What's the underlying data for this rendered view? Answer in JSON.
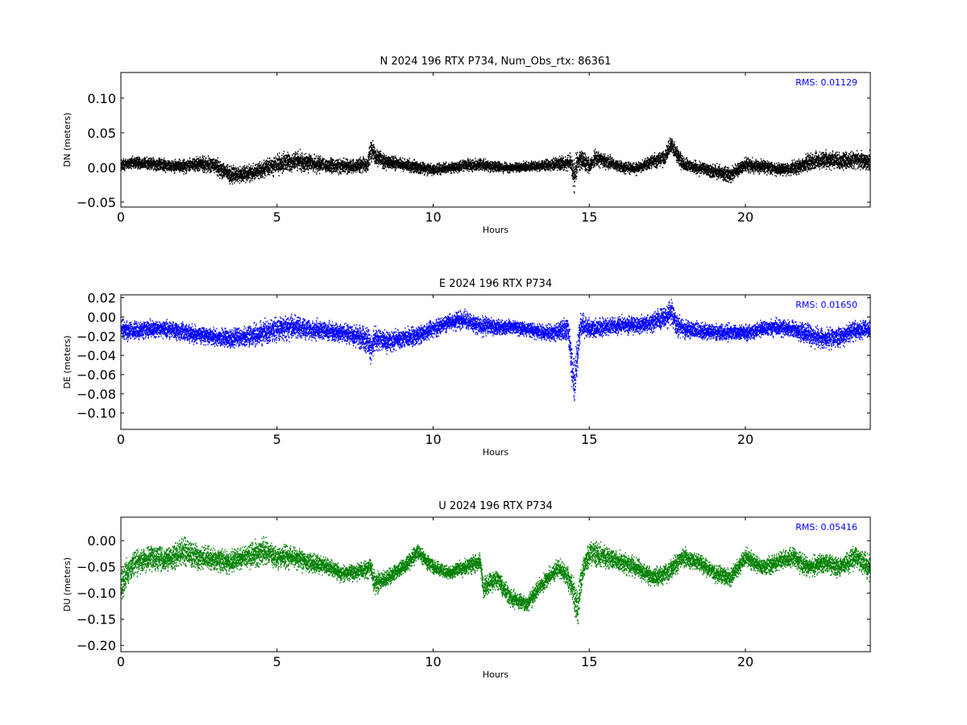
{
  "chart_data": [
    {
      "type": "scatter",
      "title": "N 2024 196 RTX  P734, Num_Obs_rtx: 86361",
      "xlabel": "Hours",
      "ylabel": "DN (meters)",
      "xlim": [
        0,
        24
      ],
      "ylim": [
        -0.057,
        0.137
      ],
      "xticks": [
        0,
        5,
        10,
        15,
        20
      ],
      "xtick_labels": [
        "0",
        "5",
        "10",
        "15",
        "20"
      ],
      "yticks": [
        -0.05,
        0.0,
        0.05,
        0.1
      ],
      "ytick_labels": [
        "−0.05",
        "0.00",
        "0.05",
        "0.10"
      ],
      "color": "#000000",
      "annotation": "RMS:  0.01129",
      "annotation_color": "#0000ff",
      "grid": false,
      "series": [
        {
          "x": [
            0.0,
            0.5,
            1.0,
            1.5,
            2.0,
            2.5,
            3.0,
            3.5,
            4.0,
            4.5,
            5.0,
            5.5,
            6.0,
            6.5,
            7.0,
            7.5,
            7.9,
            8.0,
            8.1,
            8.5,
            9.0,
            9.5,
            10.0,
            10.5,
            11.0,
            11.5,
            12.0,
            12.5,
            13.0,
            13.5,
            14.0,
            14.4,
            14.5,
            14.6,
            14.8,
            15.0,
            15.2,
            15.5,
            16.0,
            16.5,
            17.0,
            17.4,
            17.6,
            17.8,
            18.0,
            18.5,
            19.0,
            19.5,
            20.0,
            20.5,
            21.0,
            21.5,
            22.0,
            22.5,
            23.0,
            23.5,
            24.0
          ],
          "y": [
            0.005,
            0.008,
            0.006,
            0.004,
            0.003,
            0.006,
            0.004,
            -0.01,
            -0.008,
            -0.002,
            0.005,
            0.01,
            0.008,
            0.004,
            0.003,
            0.003,
            0.006,
            0.03,
            0.02,
            0.008,
            0.005,
            0.002,
            -0.002,
            0.0,
            0.004,
            0.005,
            0.002,
            0.0,
            0.002,
            0.004,
            0.006,
            0.008,
            -0.015,
            0.01,
            0.01,
            0.004,
            0.015,
            0.01,
            0.002,
            0.0,
            0.01,
            0.015,
            0.035,
            0.02,
            0.005,
            0.0,
            -0.005,
            -0.01,
            0.005,
            0.003,
            -0.002,
            0.0,
            0.008,
            0.012,
            0.01,
            0.012,
            0.01
          ],
          "spread": [
            0.012,
            0.012,
            0.012,
            0.012,
            0.013,
            0.014,
            0.016,
            0.017,
            0.016,
            0.016,
            0.02,
            0.02,
            0.017,
            0.015,
            0.014,
            0.013,
            0.015,
            0.025,
            0.018,
            0.014,
            0.012,
            0.012,
            0.011,
            0.01,
            0.011,
            0.012,
            0.01,
            0.009,
            0.009,
            0.01,
            0.012,
            0.015,
            0.03,
            0.025,
            0.018,
            0.014,
            0.016,
            0.014,
            0.011,
            0.011,
            0.013,
            0.016,
            0.018,
            0.016,
            0.013,
            0.012,
            0.013,
            0.015,
            0.014,
            0.013,
            0.012,
            0.013,
            0.016,
            0.018,
            0.016,
            0.016,
            0.016
          ]
        }
      ]
    },
    {
      "type": "scatter",
      "title": "E 2024 196 RTX  P734",
      "xlabel": "Hours",
      "ylabel": "DE (meters)",
      "xlim": [
        0,
        24
      ],
      "ylim": [
        -0.117,
        0.023
      ],
      "xticks": [
        0,
        5,
        10,
        15,
        20
      ],
      "xtick_labels": [
        "0",
        "5",
        "10",
        "15",
        "20"
      ],
      "yticks": [
        -0.1,
        -0.08,
        -0.06,
        -0.04,
        -0.02,
        0.0,
        0.02
      ],
      "ytick_labels": [
        "−0.10",
        "−0.08",
        "−0.06",
        "−0.04",
        "−0.02",
        "0.00",
        "0.02"
      ],
      "color": "#0000ff",
      "annotation": "RMS:  0.01650",
      "annotation_color": "#0000ff",
      "grid": false,
      "series": [
        {
          "x": [
            0.0,
            0.5,
            1.0,
            1.5,
            2.0,
            2.5,
            3.0,
            3.5,
            4.0,
            4.5,
            5.0,
            5.5,
            6.0,
            6.5,
            7.0,
            7.5,
            7.9,
            8.0,
            8.1,
            8.5,
            9.0,
            9.5,
            10.0,
            10.5,
            11.0,
            11.5,
            12.0,
            12.5,
            13.0,
            13.5,
            14.0,
            14.3,
            14.5,
            14.6,
            14.7,
            14.8,
            15.0,
            15.5,
            16.0,
            16.5,
            17.0,
            17.4,
            17.6,
            17.8,
            18.0,
            18.5,
            19.0,
            19.5,
            20.0,
            20.5,
            21.0,
            21.5,
            22.0,
            22.5,
            23.0,
            23.5,
            24.0
          ],
          "y": [
            -0.012,
            -0.014,
            -0.012,
            -0.013,
            -0.015,
            -0.018,
            -0.02,
            -0.022,
            -0.02,
            -0.016,
            -0.012,
            -0.01,
            -0.012,
            -0.014,
            -0.016,
            -0.018,
            -0.025,
            -0.035,
            -0.022,
            -0.025,
            -0.022,
            -0.018,
            -0.012,
            -0.005,
            -0.002,
            -0.008,
            -0.01,
            -0.01,
            -0.012,
            -0.016,
            -0.015,
            -0.01,
            -0.07,
            -0.04,
            -0.01,
            -0.008,
            -0.012,
            -0.01,
            -0.008,
            -0.008,
            -0.005,
            0.0,
            0.005,
            -0.008,
            -0.012,
            -0.014,
            -0.016,
            -0.015,
            -0.016,
            -0.012,
            -0.01,
            -0.012,
            -0.018,
            -0.022,
            -0.02,
            -0.014,
            -0.012
          ],
          "spread": [
            0.014,
            0.013,
            0.012,
            0.012,
            0.012,
            0.012,
            0.014,
            0.014,
            0.014,
            0.016,
            0.017,
            0.016,
            0.014,
            0.013,
            0.012,
            0.014,
            0.018,
            0.02,
            0.016,
            0.014,
            0.013,
            0.012,
            0.012,
            0.012,
            0.012,
            0.014,
            0.011,
            0.01,
            0.01,
            0.011,
            0.012,
            0.016,
            0.04,
            0.03,
            0.018,
            0.016,
            0.014,
            0.013,
            0.012,
            0.012,
            0.013,
            0.016,
            0.018,
            0.016,
            0.012,
            0.011,
            0.011,
            0.011,
            0.011,
            0.011,
            0.012,
            0.012,
            0.014,
            0.014,
            0.014,
            0.013,
            0.012
          ]
        }
      ]
    },
    {
      "type": "scatter",
      "title": "U 2024 196 RTX  P734",
      "xlabel": "Hours",
      "ylabel": "DU (meters)",
      "xlim": [
        0,
        24
      ],
      "ylim": [
        -0.212,
        0.045
      ],
      "xticks": [
        0,
        5,
        10,
        15,
        20
      ],
      "xtick_labels": [
        "0",
        "5",
        "10",
        "15",
        "20"
      ],
      "yticks": [
        -0.2,
        -0.15,
        -0.1,
        -0.05,
        0.0
      ],
      "ytick_labels": [
        "−0.20",
        "−0.15",
        "−0.10",
        "−0.05",
        "0.00"
      ],
      "color": "#008000",
      "annotation": "RMS:  0.05416",
      "annotation_color": "#0000ff",
      "grid": false,
      "series": [
        {
          "x": [
            0.0,
            0.3,
            0.5,
            1.0,
            1.5,
            2.0,
            2.5,
            3.0,
            3.5,
            4.0,
            4.5,
            5.0,
            5.5,
            6.0,
            6.5,
            7.0,
            7.5,
            8.0,
            8.1,
            8.5,
            9.0,
            9.5,
            10.0,
            10.5,
            11.0,
            11.5,
            11.6,
            12.0,
            12.5,
            13.0,
            13.5,
            14.0,
            14.4,
            14.6,
            14.8,
            15.0,
            15.5,
            16.0,
            16.5,
            17.0,
            17.5,
            18.0,
            18.5,
            19.0,
            19.5,
            20.0,
            20.5,
            21.0,
            21.5,
            22.0,
            22.5,
            23.0,
            23.5,
            24.0
          ],
          "y": [
            -0.08,
            -0.05,
            -0.04,
            -0.03,
            -0.035,
            -0.02,
            -0.03,
            -0.035,
            -0.04,
            -0.03,
            -0.02,
            -0.03,
            -0.03,
            -0.04,
            -0.045,
            -0.06,
            -0.06,
            -0.05,
            -0.08,
            -0.07,
            -0.05,
            -0.02,
            -0.05,
            -0.06,
            -0.05,
            -0.04,
            -0.09,
            -0.07,
            -0.11,
            -0.12,
            -0.08,
            -0.05,
            -0.08,
            -0.13,
            -0.05,
            -0.02,
            -0.03,
            -0.04,
            -0.05,
            -0.07,
            -0.06,
            -0.03,
            -0.04,
            -0.06,
            -0.07,
            -0.03,
            -0.05,
            -0.04,
            -0.03,
            -0.05,
            -0.04,
            -0.05,
            -0.03,
            -0.05
          ],
          "spread": [
            0.04,
            0.035,
            0.03,
            0.03,
            0.03,
            0.035,
            0.03,
            0.028,
            0.028,
            0.03,
            0.035,
            0.032,
            0.028,
            0.025,
            0.022,
            0.02,
            0.02,
            0.025,
            0.03,
            0.022,
            0.02,
            0.022,
            0.02,
            0.018,
            0.02,
            0.025,
            0.03,
            0.025,
            0.022,
            0.02,
            0.022,
            0.022,
            0.03,
            0.05,
            0.035,
            0.03,
            0.028,
            0.025,
            0.025,
            0.025,
            0.025,
            0.025,
            0.022,
            0.022,
            0.022,
            0.022,
            0.022,
            0.022,
            0.025,
            0.025,
            0.025,
            0.025,
            0.03,
            0.03
          ]
        }
      ]
    }
  ]
}
